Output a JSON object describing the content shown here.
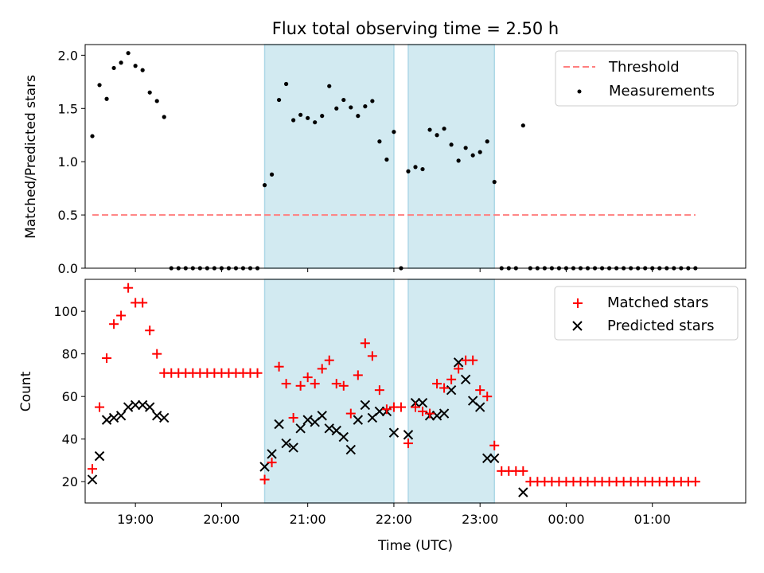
{
  "figure": {
    "title": "Flux total observing time = 2.50 h"
  },
  "colors": {
    "threshold": "#ff7f7f",
    "measurement": "#000000",
    "matched": "#ff0000",
    "predicted": "#000000",
    "observing_band": "#add8e6"
  },
  "chart_data": [
    {
      "type": "scatter",
      "panel": "top",
      "xlabel": "",
      "ylabel": "Matched/Predicted stars",
      "ylim": [
        0,
        2.1
      ],
      "yticks": [
        0.0,
        0.5,
        1.0,
        1.5,
        2.0
      ],
      "ytick_labels": [
        "0.0",
        "0.5",
        "1.0",
        "1.5",
        "2.0"
      ],
      "xlim": [
        "18:25",
        "02:05"
      ],
      "xticks": [
        "19:00",
        "20:00",
        "21:00",
        "22:00",
        "23:00",
        "00:00",
        "01:00"
      ],
      "legend_position": "top-right",
      "shaded_intervals": [
        [
          "20:30",
          "22:00"
        ],
        [
          "22:10",
          "23:10"
        ]
      ],
      "threshold": {
        "name": "Threshold",
        "y": 0.5,
        "x_from": "18:30",
        "x_to": "01:30"
      },
      "series": [
        {
          "name": "Measurements",
          "marker": "dot",
          "x": [
            "18:30",
            "18:35",
            "18:40",
            "18:45",
            "18:50",
            "18:55",
            "19:00",
            "19:05",
            "19:10",
            "19:15",
            "19:20",
            "19:25",
            "19:30",
            "19:35",
            "19:40",
            "19:45",
            "19:50",
            "19:55",
            "20:00",
            "20:05",
            "20:10",
            "20:15",
            "20:20",
            "20:25",
            "20:30",
            "20:35",
            "20:40",
            "20:45",
            "20:50",
            "20:55",
            "21:00",
            "21:05",
            "21:10",
            "21:15",
            "21:20",
            "21:25",
            "21:30",
            "21:35",
            "21:40",
            "21:45",
            "21:50",
            "21:55",
            "22:00",
            "22:05",
            "22:10",
            "22:15",
            "22:20",
            "22:25",
            "22:30",
            "22:35",
            "22:40",
            "22:45",
            "22:50",
            "22:55",
            "23:00",
            "23:05",
            "23:10",
            "23:15",
            "23:20",
            "23:25",
            "23:30",
            "23:35",
            "23:40",
            "23:45",
            "23:50",
            "23:55",
            "00:00",
            "00:05",
            "00:10",
            "00:15",
            "00:20",
            "00:25",
            "00:30",
            "00:35",
            "00:40",
            "00:45",
            "00:50",
            "00:55",
            "01:00",
            "01:05",
            "01:10",
            "01:15",
            "01:20",
            "01:25",
            "01:30"
          ],
          "y": [
            1.24,
            1.72,
            1.59,
            1.88,
            1.93,
            2.02,
            1.9,
            1.86,
            1.65,
            1.57,
            1.42,
            0.0,
            0.0,
            0.0,
            0.0,
            0.0,
            0.0,
            0.0,
            0.0,
            0.0,
            0.0,
            0.0,
            0.0,
            0.0,
            0.78,
            0.88,
            1.58,
            1.73,
            1.39,
            1.44,
            1.41,
            1.37,
            1.43,
            1.71,
            1.5,
            1.58,
            1.51,
            1.43,
            1.52,
            1.57,
            1.19,
            1.02,
            1.28,
            0.0,
            0.91,
            0.95,
            0.93,
            1.3,
            1.25,
            1.31,
            1.16,
            1.01,
            1.13,
            1.06,
            1.09,
            1.19,
            0.81,
            0.0,
            0.0,
            0.0,
            1.34,
            0.0,
            0.0,
            0.0,
            0.0,
            0.0,
            0.0,
            0.0,
            0.0,
            0.0,
            0.0,
            0.0,
            0.0,
            0.0,
            0.0,
            0.0,
            0.0,
            0.0,
            0.0,
            0.0,
            0.0,
            0.0,
            0.0,
            0.0,
            0.0
          ]
        }
      ]
    },
    {
      "type": "scatter",
      "panel": "bottom",
      "xlabel": "Time (UTC)",
      "ylabel": "Count",
      "ylim": [
        10,
        115
      ],
      "yticks": [
        20,
        40,
        60,
        80,
        100
      ],
      "ytick_labels": [
        "20",
        "40",
        "60",
        "80",
        "100"
      ],
      "xlim": [
        "18:25",
        "02:05"
      ],
      "xticks": [
        "19:00",
        "20:00",
        "21:00",
        "22:00",
        "23:00",
        "00:00",
        "01:00"
      ],
      "xtick_labels": [
        "19:00",
        "20:00",
        "21:00",
        "22:00",
        "23:00",
        "00:00",
        "01:00"
      ],
      "legend_position": "top-right",
      "shaded_intervals": [
        [
          "20:30",
          "22:00"
        ],
        [
          "22:10",
          "23:10"
        ]
      ],
      "series": [
        {
          "name": "Matched stars",
          "marker": "plus",
          "x": [
            "18:30",
            "18:35",
            "18:40",
            "18:45",
            "18:50",
            "18:55",
            "19:00",
            "19:05",
            "19:10",
            "19:15",
            "19:20",
            "19:25",
            "19:30",
            "19:35",
            "19:40",
            "19:45",
            "19:50",
            "19:55",
            "20:00",
            "20:05",
            "20:10",
            "20:15",
            "20:20",
            "20:25",
            "20:30",
            "20:35",
            "20:40",
            "20:45",
            "20:50",
            "20:55",
            "21:00",
            "21:05",
            "21:10",
            "21:15",
            "21:20",
            "21:25",
            "21:30",
            "21:35",
            "21:40",
            "21:45",
            "21:50",
            "21:55",
            "22:00",
            "22:05",
            "22:10",
            "22:15",
            "22:20",
            "22:25",
            "22:30",
            "22:35",
            "22:40",
            "22:45",
            "22:50",
            "22:55",
            "23:00",
            "23:05",
            "23:10",
            "23:15",
            "23:20",
            "23:25",
            "23:30",
            "23:35",
            "23:40",
            "23:45",
            "23:50",
            "23:55",
            "00:00",
            "00:05",
            "00:10",
            "00:15",
            "00:20",
            "00:25",
            "00:30",
            "00:35",
            "00:40",
            "00:45",
            "00:50",
            "00:55",
            "01:00",
            "01:05",
            "01:10",
            "01:15",
            "01:20",
            "01:25",
            "01:30"
          ],
          "y": [
            26,
            55,
            78,
            94,
            98,
            111,
            104,
            104,
            91,
            80,
            71,
            71,
            71,
            71,
            71,
            71,
            71,
            71,
            71,
            71,
            71,
            71,
            71,
            71,
            21,
            29,
            74,
            66,
            50,
            65,
            69,
            66,
            73,
            77,
            66,
            65,
            52,
            70,
            85,
            79,
            63,
            54,
            55,
            55,
            38,
            55,
            53,
            52,
            66,
            64,
            68,
            73,
            77,
            77,
            63,
            60,
            37,
            25,
            25,
            25,
            25,
            20,
            20,
            20,
            20,
            20,
            20,
            20,
            20,
            20,
            20,
            20,
            20,
            20,
            20,
            20,
            20,
            20,
            20,
            20,
            20,
            20,
            20,
            20,
            20
          ]
        },
        {
          "name": "Predicted stars",
          "marker": "x",
          "x": [
            "18:30",
            "18:35",
            "18:40",
            "18:45",
            "18:50",
            "18:55",
            "19:00",
            "19:05",
            "19:10",
            "19:15",
            "19:20",
            "20:30",
            "20:35",
            "20:40",
            "20:45",
            "20:50",
            "20:55",
            "21:00",
            "21:05",
            "21:10",
            "21:15",
            "21:20",
            "21:25",
            "21:30",
            "21:35",
            "21:40",
            "21:45",
            "21:50",
            "21:55",
            "22:00",
            "22:10",
            "22:15",
            "22:20",
            "22:25",
            "22:30",
            "22:35",
            "22:40",
            "22:45",
            "22:50",
            "22:55",
            "23:00",
            "23:05",
            "23:10",
            "23:30"
          ],
          "y": [
            21,
            32,
            49,
            50,
            51,
            55,
            56,
            56,
            55,
            51,
            50,
            27,
            33,
            47,
            38,
            36,
            45,
            49,
            48,
            51,
            45,
            44,
            41,
            35,
            49,
            56,
            50,
            53,
            53,
            43,
            42,
            57,
            57,
            51,
            51,
            52,
            63,
            76,
            68,
            58,
            55,
            31,
            31,
            15
          ]
        }
      ]
    }
  ]
}
